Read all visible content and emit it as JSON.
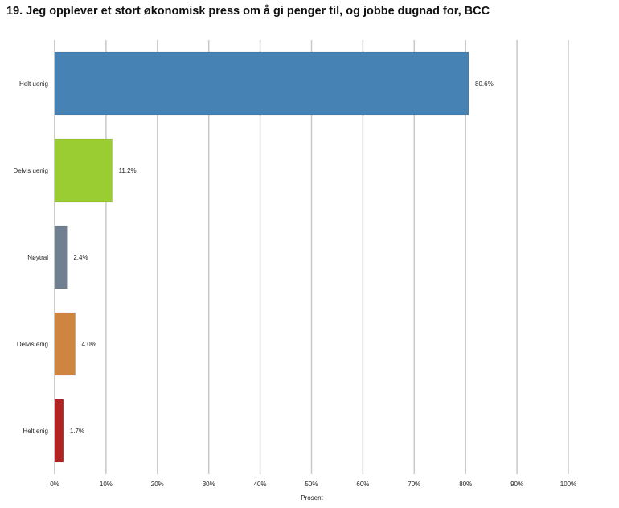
{
  "chart_data": {
    "type": "bar",
    "orientation": "horizontal",
    "title": "19. Jeg opplever et stort økonomisk press om å gi penger til, og jobbe dugnad for, BCC",
    "xlabel": "Prosent",
    "ylabel": "",
    "xlim": [
      0,
      100
    ],
    "x_ticks": [
      0,
      10,
      20,
      30,
      40,
      50,
      60,
      70,
      80,
      90,
      100
    ],
    "x_tick_labels": [
      "0%",
      "10%",
      "20%",
      "30%",
      "40%",
      "50%",
      "60%",
      "70%",
      "80%",
      "90%",
      "100%"
    ],
    "grid": "vertical",
    "legend": "none",
    "categories": [
      "Helt uenig",
      "Delvis uenig",
      "Nøytral",
      "Delvis enig",
      "Helt enig"
    ],
    "values": [
      80.6,
      11.2,
      2.4,
      4.0,
      1.7
    ],
    "value_labels": [
      "80.6%",
      "11.2%",
      "2.4%",
      "4.0%",
      "1.7%"
    ],
    "colors": [
      "#4682B4",
      "#9ACD32",
      "#708090",
      "#CD853F",
      "#B22222"
    ]
  },
  "gridline_color": "#c8c8c8",
  "axis_color": "#999999"
}
